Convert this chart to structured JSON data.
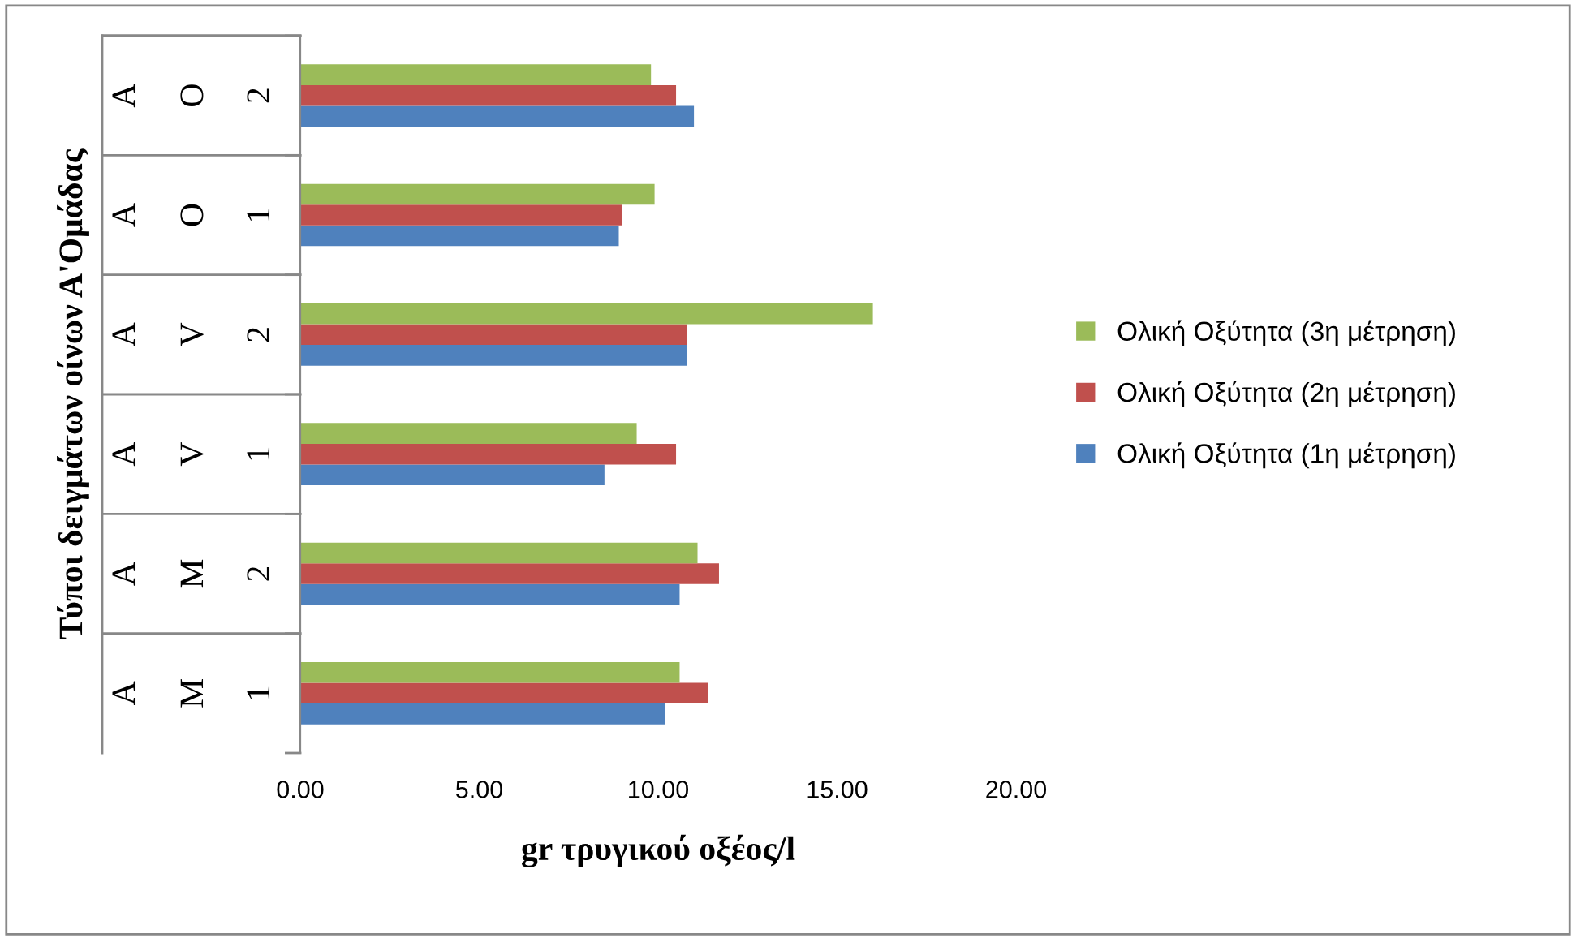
{
  "chart_data": {
    "type": "bar",
    "orientation": "horizontal",
    "xlabel": "gr τρυγικού οξέος/l",
    "annotations": [
      "Τύποι δειγμάτων οίνων Α'Ομάδας"
    ],
    "categories": [
      "A O 2",
      "A O 1",
      "A V 2",
      "A V 1",
      "A M 2",
      "A M 1"
    ],
    "series": [
      {
        "name": "Ολική Οξύτητα (1η μέτρηση)",
        "color": "#4f81bd",
        "values": [
          11.0,
          8.9,
          10.8,
          8.5,
          10.6,
          10.2
        ]
      },
      {
        "name": "Ολική Οξύτητα (2η μέτρηση)",
        "color": "#c0504d",
        "values": [
          10.5,
          9.0,
          10.8,
          10.5,
          11.7,
          11.4
        ]
      },
      {
        "name": "Ολική Οξύτητα (3η μέτρηση)",
        "color": "#9bbb59",
        "values": [
          9.8,
          9.9,
          16.0,
          9.4,
          11.1,
          10.6
        ]
      }
    ],
    "xlim": [
      0,
      20
    ],
    "xticks": [
      {
        "value": 0,
        "label": "0.00"
      },
      {
        "value": 5,
        "label": "5.00"
      },
      {
        "value": 10,
        "label": "10.00"
      },
      {
        "value": 15,
        "label": "15.00"
      },
      {
        "value": 20,
        "label": "20.00"
      }
    ],
    "grid": false,
    "legend": "right"
  }
}
